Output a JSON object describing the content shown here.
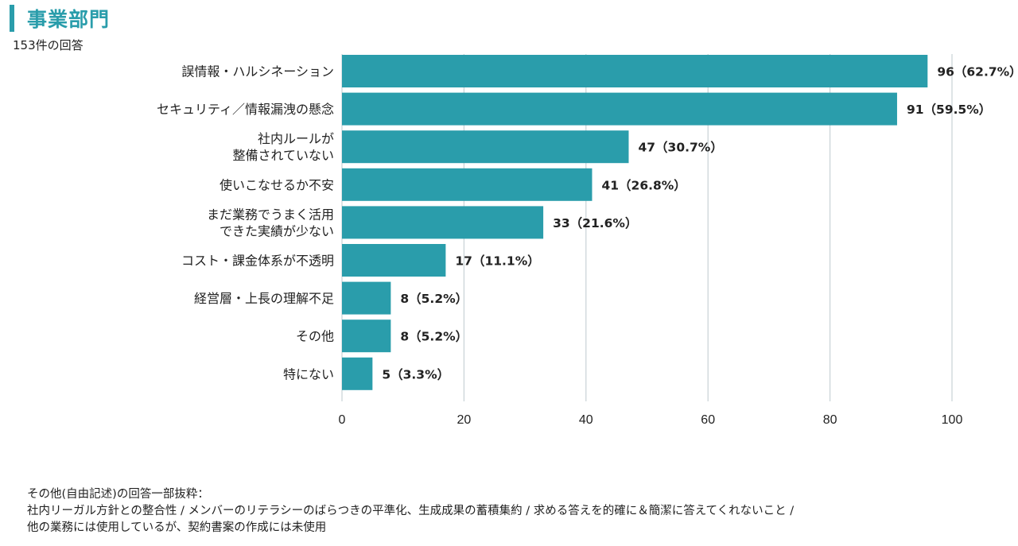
{
  "header": {
    "title": "事業部門",
    "subtitle": "153件の回答"
  },
  "chart_data": {
    "type": "bar",
    "orientation": "horizontal",
    "title": "事業部門",
    "subtitle": "153件の回答",
    "xlim": [
      0,
      100
    ],
    "xticks": [
      0,
      20,
      40,
      60,
      80,
      100
    ],
    "bar_color": "#2a9dab",
    "grid_color": "#c8d2d6",
    "categories": [
      [
        "誤情報・ハルシネーション"
      ],
      [
        "セキュリティ／情報漏洩の懸念"
      ],
      [
        "社内ルールが",
        "整備されていない"
      ],
      [
        "使いこなせるか不安"
      ],
      [
        "まだ業務でうまく活用",
        "できた実績が少ない"
      ],
      [
        "コスト・課金体系が不透明"
      ],
      [
        "経営層・上長の理解不足"
      ],
      [
        "その他"
      ],
      [
        "特にない"
      ]
    ],
    "values": [
      96,
      91,
      47,
      41,
      33,
      17,
      8,
      8,
      5
    ],
    "labels": [
      "96（62.7%）",
      "91（59.5%）",
      "47（30.7%）",
      "41（26.8%）",
      "33（21.6%）",
      "17（11.1%）",
      "8（5.2%）",
      "8（5.2%）",
      "5（3.3%）"
    ]
  },
  "note": {
    "heading": "その他(自由記述)の回答一部抜粋：",
    "line1": "社内リーガル方針との整合性 / メンバーのリテラシーのばらつきの平準化、生成成果の蓄積集約 / 求める答えを的確に＆簡潔に答えてくれないこと /",
    "line2": "他の業務には使用しているが、契約書案の作成には未使用"
  }
}
